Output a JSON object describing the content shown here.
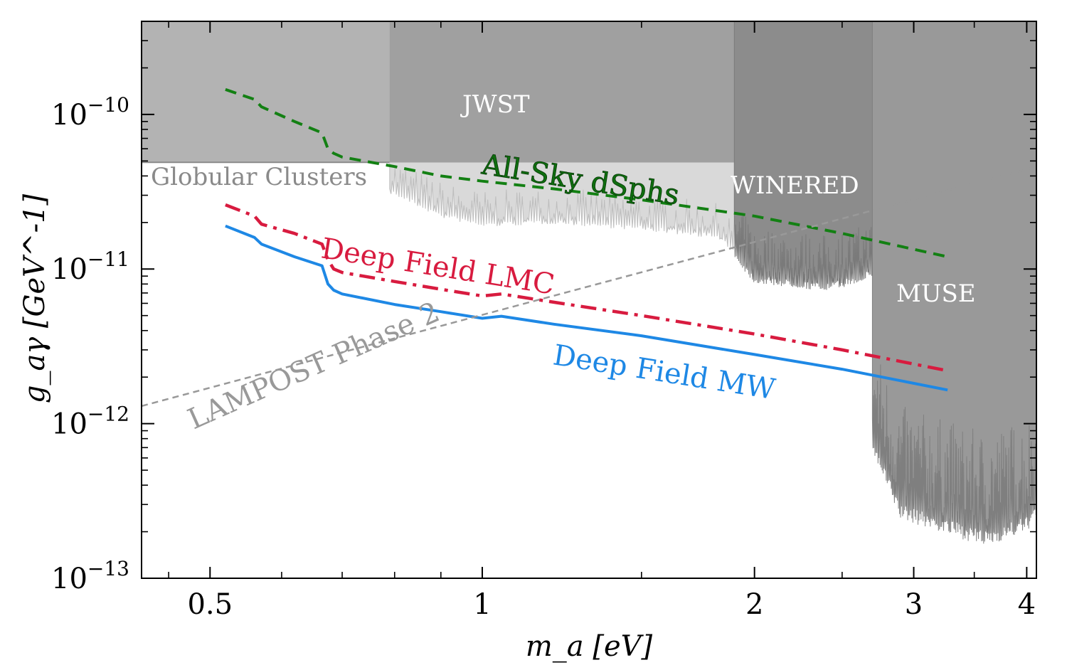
{
  "chart_data": {
    "type": "line",
    "xlabel": "m_a [eV]",
    "ylabel": "g_aγ [GeV^-1]",
    "xscale": "log",
    "yscale": "log",
    "xlim": [
      0.42,
      4.1
    ],
    "ylim": [
      1e-13,
      4e-10
    ],
    "x_ticks": [
      0.5,
      1,
      2,
      3,
      4
    ],
    "x_tick_labels": [
      "0.5",
      "1",
      "2",
      "3",
      "4"
    ],
    "y_ticks": [
      1e-13,
      1e-12,
      1e-11,
      1e-10
    ],
    "y_tick_labels": [
      {
        "base": "10",
        "exp": "−13"
      },
      {
        "base": "10",
        "exp": "−12"
      },
      {
        "base": "10",
        "exp": "−11"
      },
      {
        "base": "10",
        "exp": "−10"
      }
    ],
    "grid": false,
    "legend": "none",
    "series": [
      {
        "name": "All-Sky dSphs",
        "style": "dashed",
        "color": "#138013",
        "x": [
          0.52,
          0.56,
          0.57,
          0.62,
          0.665,
          0.675,
          0.685,
          0.7,
          0.8,
          0.9,
          1.0,
          1.2,
          1.5,
          2.0,
          2.5,
          3.27
        ],
        "y": [
          1.45e-10,
          1.25e-10,
          1.12e-10,
          9e-11,
          7.6e-11,
          6e-11,
          5.6e-11,
          5.3e-11,
          4.6e-11,
          4e-11,
          3.7e-11,
          3.3e-11,
          2.8e-11,
          2.2e-11,
          1.7e-11,
          1.2e-11
        ]
      },
      {
        "name": "Deep Field LMC",
        "style": "dashdot",
        "color": "#d81b3f",
        "x": [
          0.52,
          0.56,
          0.57,
          0.62,
          0.665,
          0.675,
          0.685,
          0.7,
          0.8,
          0.9,
          1.0,
          1.05,
          1.2,
          1.5,
          2.0,
          2.5,
          3.27
        ],
        "y": [
          2.6e-11,
          2.2e-11,
          1.95e-11,
          1.7e-11,
          1.45e-11,
          1.15e-11,
          1e-11,
          9.5e-12,
          8.3e-12,
          7.4e-12,
          6.7e-12,
          6.9e-12,
          6.1e-12,
          5e-12,
          3.8e-12,
          3e-12,
          2.2e-12
        ]
      },
      {
        "name": "Deep Field MW",
        "style": "solid",
        "color": "#1e88e5",
        "x": [
          0.52,
          0.56,
          0.57,
          0.62,
          0.665,
          0.675,
          0.685,
          0.7,
          0.8,
          0.9,
          1.0,
          1.05,
          1.2,
          1.5,
          2.0,
          2.5,
          3.27
        ],
        "y": [
          1.9e-11,
          1.6e-11,
          1.45e-11,
          1.2e-11,
          1.05e-11,
          8e-12,
          7.3e-12,
          6.9e-12,
          5.9e-12,
          5.3e-12,
          4.8e-12,
          4.95e-12,
          4.4e-12,
          3.7e-12,
          2.8e-12,
          2.25e-12,
          1.65e-12
        ]
      },
      {
        "name": "LAMPOST Phase 2",
        "style": "dashed-thin",
        "color": "#999999",
        "x": [
          0.42,
          4.1
        ],
        "y": [
          1.3e-12,
          4.6e-11
        ]
      }
    ],
    "regions": [
      {
        "name": "Globular Clusters",
        "type": "above",
        "y_min": 4.9e-11,
        "x_range": [
          0.42,
          4.1
        ]
      },
      {
        "name": "JWST",
        "x_range": [
          0.79,
          1.9
        ],
        "lower_envelope": [
          [
            0.79,
            3.3e-11
          ],
          [
            0.9,
            2.3e-11
          ],
          [
            1.0,
            2e-11
          ],
          [
            1.2,
            2.1e-11
          ],
          [
            1.5,
            1.9e-11
          ],
          [
            1.8,
            1.7e-11
          ],
          [
            1.9,
            1.4e-11
          ]
        ]
      },
      {
        "name": "WINERED",
        "x_range": [
          1.9,
          2.7
        ],
        "lower_envelope": [
          [
            1.9,
            1.3e-11
          ],
          [
            2.0,
            9e-12
          ],
          [
            2.2,
            8.5e-12
          ],
          [
            2.4,
            8e-12
          ],
          [
            2.6,
            9e-12
          ],
          [
            2.7,
            1e-11
          ]
        ]
      },
      {
        "name": "MUSE",
        "x_range": [
          2.7,
          4.1
        ],
        "lower_envelope": [
          [
            2.7,
            8e-13
          ],
          [
            2.9,
            3e-13
          ],
          [
            3.2,
            2.5e-13
          ],
          [
            3.6,
            2e-13
          ],
          [
            4.0,
            2.5e-13
          ],
          [
            4.1,
            3e-13
          ]
        ]
      }
    ]
  },
  "labels": {
    "globular_clusters": "Globular Clusters",
    "jwst": "JWST",
    "winered": "WINERED",
    "muse": "MUSE",
    "all_sky": "All-Sky dSphs",
    "deep_lmc": "Deep Field LMC",
    "deep_mw": "Deep Field MW",
    "lampost": "LAMPOST Phase 2"
  },
  "colors": {
    "background": "#ffffff",
    "globular_fill": "#b3b3b3",
    "jwst_fill": "#a0a0a0",
    "jwst_light": "#d9d9d9",
    "winered_fill": "#8c8c8c",
    "muse_fill": "#999999",
    "region_label_text": "#ffffff",
    "globular_label_text": "#8a8a8a"
  }
}
